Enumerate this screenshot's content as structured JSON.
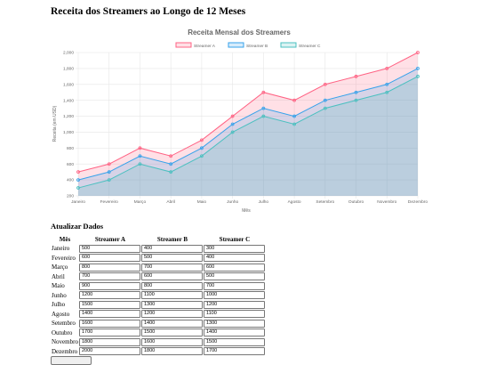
{
  "page": {
    "title": "Receita dos Streamers ao Longo de 12 Meses"
  },
  "colors": {
    "streamer_a": "#ff6384",
    "streamer_b": "#36a2eb",
    "streamer_c": "#4bc0c0",
    "grid": "#e6e6e6",
    "axis_text": "#666666"
  },
  "chart_data": {
    "type": "area",
    "title": "Receita Mensal dos Streamers",
    "xlabel": "Mês",
    "ylabel": "Receita (em USD)",
    "ylim": [
      200,
      2000
    ],
    "yticks": [
      200,
      400,
      600,
      800,
      1000,
      1200,
      1400,
      1600,
      1800,
      2000
    ],
    "ytick_labels": [
      "200",
      "400",
      "600",
      "800",
      "1,000",
      "1,200",
      "1,400",
      "1,600",
      "1,800",
      "2,000"
    ],
    "grid": true,
    "legend": "top-center",
    "categories": [
      "Janeiro",
      "Fevereiro",
      "Março",
      "Abril",
      "Maio",
      "Junho",
      "Julho",
      "Agosto",
      "Setembro",
      "Outubro",
      "Novembro",
      "Dezembro"
    ],
    "series": [
      {
        "name": "Streamer A",
        "values": [
          500,
          600,
          800,
          700,
          900,
          1200,
          1500,
          1400,
          1600,
          1700,
          1800,
          2000
        ]
      },
      {
        "name": "Streamer B",
        "values": [
          400,
          500,
          700,
          600,
          800,
          1100,
          1300,
          1200,
          1400,
          1500,
          1600,
          1800
        ]
      },
      {
        "name": "Streamer C",
        "values": [
          300,
          400,
          600,
          500,
          700,
          1000,
          1200,
          1100,
          1300,
          1400,
          1500,
          1700
        ]
      }
    ]
  },
  "form": {
    "heading": "Atualizar Dados",
    "headers": {
      "month": "Mês",
      "a": "Streamer A",
      "b": "Streamer B",
      "c": "Streamer C"
    },
    "rows": [
      {
        "month": "Janeiro",
        "a": "500",
        "b": "400",
        "c": "300"
      },
      {
        "month": "Fevereiro",
        "a": "600",
        "b": "500",
        "c": "400"
      },
      {
        "month": "Março",
        "a": "800",
        "b": "700",
        "c": "600"
      },
      {
        "month": "Abril",
        "a": "700",
        "b": "600",
        "c": "500"
      },
      {
        "month": "Maio",
        "a": "900",
        "b": "800",
        "c": "700"
      },
      {
        "month": "Junho",
        "a": "1200",
        "b": "1100",
        "c": "1000"
      },
      {
        "month": "Julho",
        "a": "1500",
        "b": "1300",
        "c": "1200"
      },
      {
        "month": "Agosto",
        "a": "1400",
        "b": "1200",
        "c": "1100"
      },
      {
        "month": "Setembro",
        "a": "1600",
        "b": "1400",
        "c": "1300"
      },
      {
        "month": "Outubro",
        "a": "1700",
        "b": "1500",
        "c": "1400"
      },
      {
        "month": "Novembro",
        "a": "1800",
        "b": "1600",
        "c": "1500"
      },
      {
        "month": "Dezembro",
        "a": "2000",
        "b": "1800",
        "c": "1700"
      }
    ],
    "button_label": ""
  }
}
